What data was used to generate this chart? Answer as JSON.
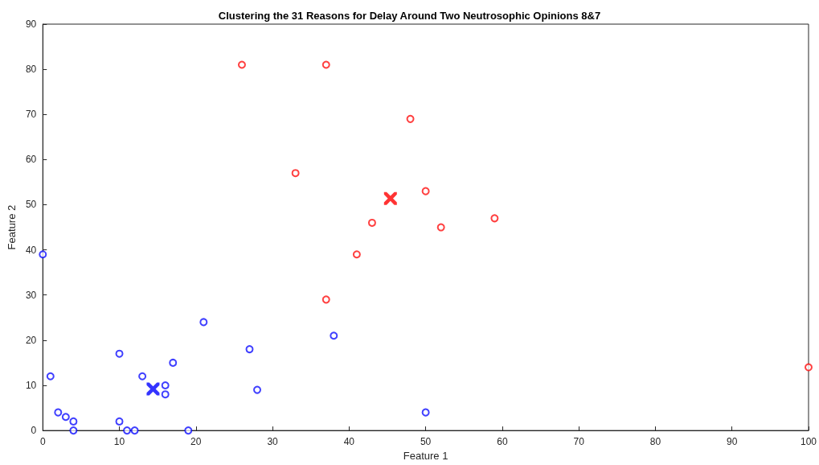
{
  "chart_data": {
    "type": "scatter",
    "title": "Clustering the 31 Reasons for Delay Around Two Neutrosophic Opinions 8&7",
    "xlabel": "Feature 1",
    "ylabel": "Feature 2",
    "xlim": [
      0,
      100
    ],
    "xticks": [
      0,
      10,
      20,
      30,
      40,
      50,
      60,
      70,
      80,
      90,
      100
    ],
    "ylim": [
      0,
      90
    ],
    "yticks": [
      0,
      10,
      20,
      30,
      40,
      50,
      60,
      70,
      80,
      90
    ],
    "grid": false,
    "series": [
      {
        "color": "#0000ff",
        "marker": "circle",
        "x": [
          0,
          1,
          2,
          3,
          4,
          4,
          10,
          10,
          11,
          12,
          13,
          16,
          16,
          17,
          19,
          21,
          27,
          28,
          38,
          50
        ],
        "values": [
          39,
          12,
          4,
          3,
          2,
          0,
          17,
          2,
          0,
          0,
          12,
          10,
          8,
          15,
          0,
          24,
          18,
          9,
          21,
          4
        ]
      },
      {
        "color": "#ff0000",
        "marker": "circle",
        "x": [
          26,
          37,
          48,
          33,
          50,
          59,
          43,
          52,
          41,
          37,
          100
        ],
        "values": [
          81,
          81,
          69,
          57,
          53,
          47,
          46,
          45,
          39,
          29,
          14
        ]
      },
      {
        "color": "#0000ff",
        "marker": "cross",
        "x": [
          14.4
        ],
        "values": [
          9.2
        ]
      },
      {
        "color": "#ff0000",
        "marker": "cross",
        "x": [
          45.4
        ],
        "values": [
          51.4
        ]
      }
    ]
  }
}
